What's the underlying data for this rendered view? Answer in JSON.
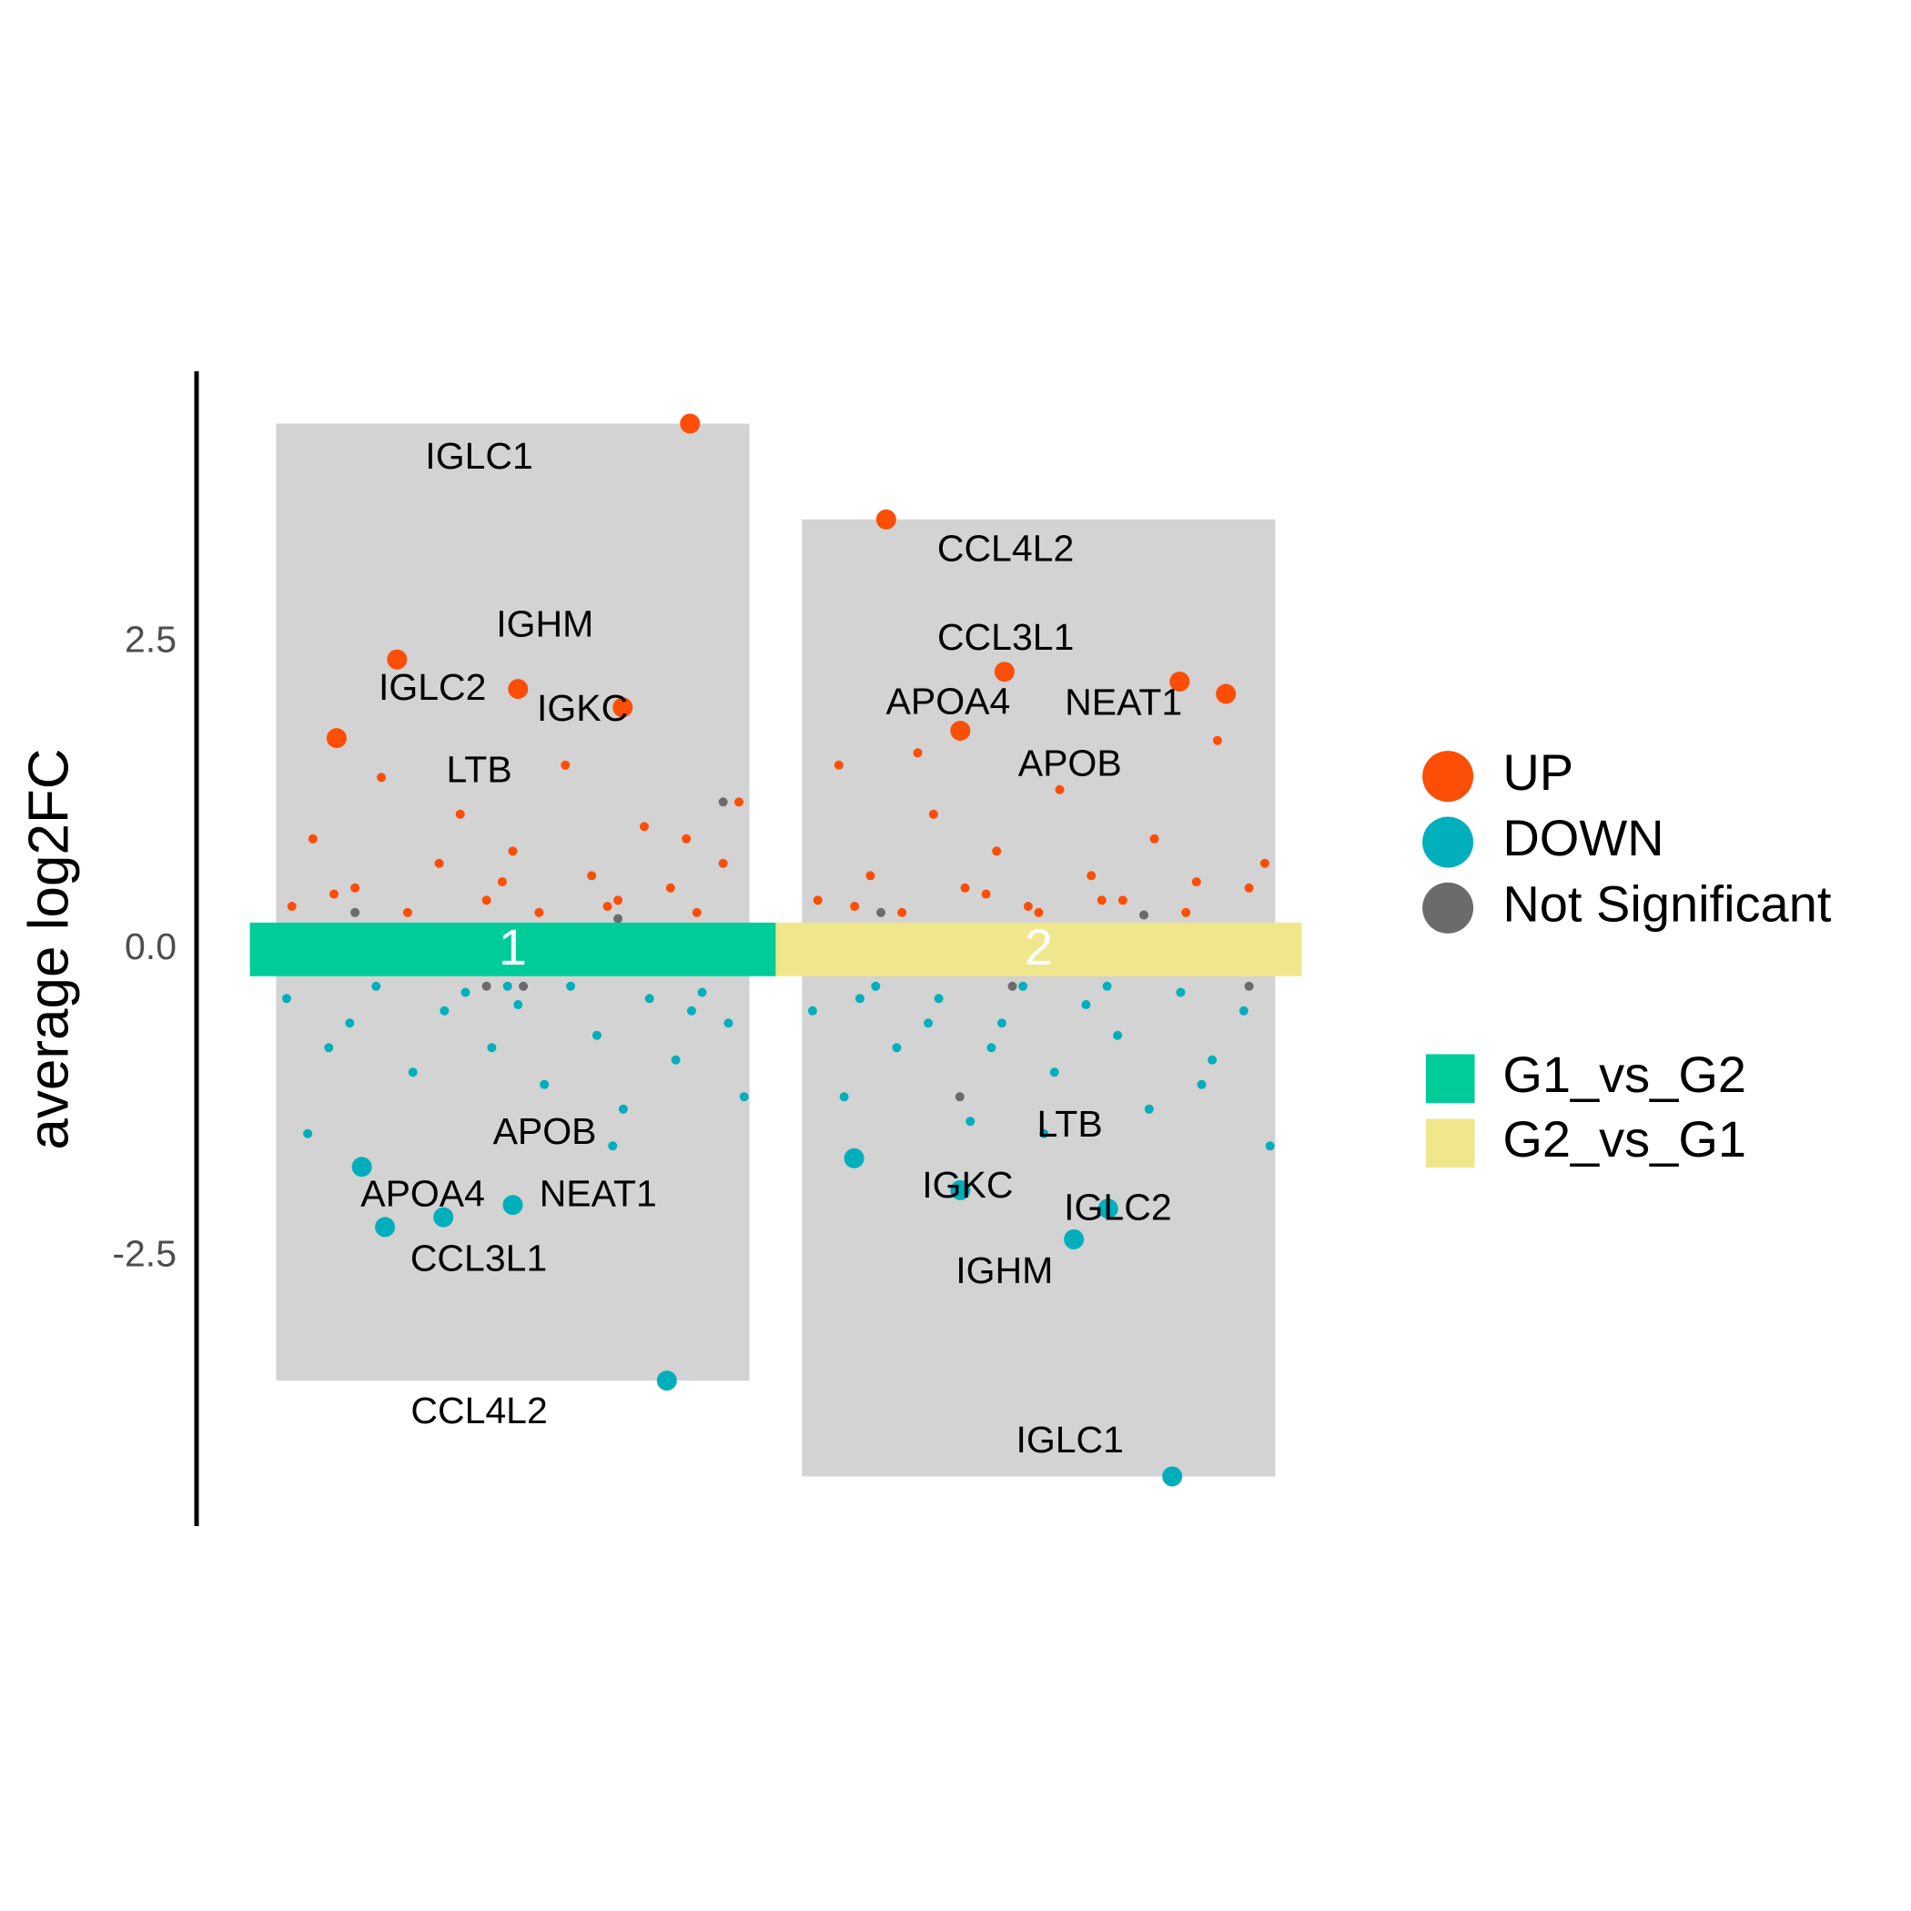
{
  "chart_data": {
    "type": "scatter",
    "ylabel": "average log2FC",
    "ylim": [
      -4.7,
      4.7
    ],
    "yticks": [
      2.5,
      {
        "value": 0,
        "label": "0.0"
      },
      -2.5
    ],
    "xlim": [
      0.5,
      2.5
    ],
    "groups": [
      {
        "name": "G1_vs_G2",
        "label": "1",
        "x": 1,
        "color": "#00CC99"
      },
      {
        "name": "G2_vs_G1",
        "label": "2",
        "x": 2,
        "color": "#F0E68C"
      }
    ],
    "series": [
      {
        "name": "UP",
        "color": "#FC4E07",
        "labels": [
          "IGLC1",
          "IGLC2",
          "IGHM",
          "IGKC",
          "LTB",
          "CCL4L2",
          "CCL3L1",
          "NEAT1",
          "APOB",
          "APOA4",
          null,
          null,
          null,
          null,
          null,
          null,
          null,
          null,
          null,
          null,
          null,
          null,
          null,
          null,
          null,
          null,
          null,
          null,
          null,
          null,
          null,
          null,
          null,
          null,
          null,
          null,
          null,
          null,
          null,
          null,
          null,
          null,
          null,
          null,
          null,
          null,
          null,
          null,
          null,
          null,
          null,
          null,
          null,
          null
        ],
        "x": [
          1.337,
          0.78,
          1.01,
          1.209,
          0.665,
          1.71,
          1.935,
          2.268,
          2.356,
          1.851,
          0.58,
          0.62,
          0.7,
          0.75,
          0.8,
          0.86,
          0.9,
          0.95,
          1.0,
          1.05,
          1.1,
          1.15,
          1.2,
          1.25,
          1.3,
          1.35,
          1.4,
          1.43,
          0.66,
          0.98,
          1.18,
          1.33,
          1.58,
          1.62,
          1.68,
          1.74,
          1.8,
          1.86,
          1.92,
          1.98,
          2.04,
          2.1,
          2.16,
          2.22,
          2.28,
          2.34,
          2.4,
          2.43,
          1.65,
          1.9,
          2.12,
          2.3,
          1.77,
          2.0
        ],
        "values": [
          4.28,
          2.36,
          2.12,
          1.97,
          1.72,
          3.5,
          2.26,
          2.18,
          2.08,
          1.78,
          0.35,
          0.9,
          0.5,
          1.4,
          0.3,
          0.7,
          1.1,
          0.4,
          0.8,
          0.3,
          1.5,
          0.6,
          0.4,
          1.0,
          0.5,
          0.3,
          0.7,
          1.2,
          0.45,
          0.55,
          0.35,
          0.9,
          0.4,
          1.5,
          0.6,
          0.3,
          1.1,
          0.5,
          0.8,
          0.35,
          1.3,
          0.6,
          0.4,
          0.9,
          0.3,
          1.7,
          0.5,
          0.7,
          0.35,
          0.45,
          0.4,
          0.55,
          1.6,
          0.3
        ]
      },
      {
        "name": "DOWN",
        "color": "#00AFBB",
        "labels": [
          "APOB",
          "APOA4",
          "NEAT1",
          "CCL3L1",
          "CCL4L2",
          "LTB",
          "IGKC",
          "IGLC2",
          "IGHM",
          "IGLC1",
          null,
          null,
          null,
          null,
          null,
          null,
          null,
          null,
          null,
          null,
          null,
          null,
          null,
          null,
          null,
          null,
          null,
          null,
          null,
          null,
          null,
          null,
          null,
          null,
          null,
          null,
          null,
          null,
          null,
          null,
          null,
          null,
          null,
          null,
          null,
          null,
          null,
          null,
          null,
          null,
          null,
          null,
          null,
          null
        ],
        "x": [
          0.713,
          0.757,
          1.0,
          0.868,
          1.293,
          1.649,
          1.851,
          2.132,
          2.067,
          2.254,
          0.57,
          0.61,
          0.69,
          0.74,
          0.81,
          0.87,
          0.91,
          0.96,
          1.01,
          1.06,
          1.11,
          1.16,
          1.21,
          1.26,
          1.31,
          1.36,
          1.41,
          1.44,
          0.65,
          0.99,
          1.19,
          1.34,
          1.57,
          1.63,
          1.69,
          1.73,
          1.81,
          1.87,
          1.93,
          1.97,
          2.03,
          2.09,
          2.15,
          2.21,
          2.27,
          2.33,
          2.39,
          2.44,
          1.66,
          1.91,
          2.13,
          2.31,
          1.79,
          2.01
        ],
        "values": [
          -1.77,
          -2.26,
          -2.08,
          -2.18,
          -3.51,
          -1.7,
          -1.96,
          -2.11,
          -2.36,
          -4.29,
          -0.4,
          -1.5,
          -0.6,
          -0.3,
          -1.0,
          -0.5,
          -0.35,
          -0.8,
          -0.45,
          -1.1,
          -0.3,
          -0.7,
          -1.3,
          -0.4,
          -0.9,
          -0.35,
          -0.6,
          -1.2,
          -0.8,
          -0.3,
          -1.6,
          -0.5,
          -0.5,
          -1.2,
          -0.3,
          -0.8,
          -0.4,
          -1.4,
          -0.6,
          -0.3,
          -1.0,
          -0.45,
          -0.7,
          -1.3,
          -0.35,
          -0.9,
          -0.5,
          -1.6,
          -0.4,
          -0.8,
          -0.3,
          -1.1,
          -0.6,
          -1.5
        ]
      },
      {
        "name": "Not Significant",
        "color": "#6B6B6B",
        "x": [
          0.7,
          0.95,
          1.2,
          1.4,
          1.7,
          1.95,
          2.2,
          2.4,
          1.02,
          1.85
        ],
        "values": [
          0.3,
          -0.3,
          0.25,
          1.2,
          0.3,
          -0.3,
          0.28,
          -0.3,
          -0.3,
          -1.2
        ]
      }
    ]
  }
}
